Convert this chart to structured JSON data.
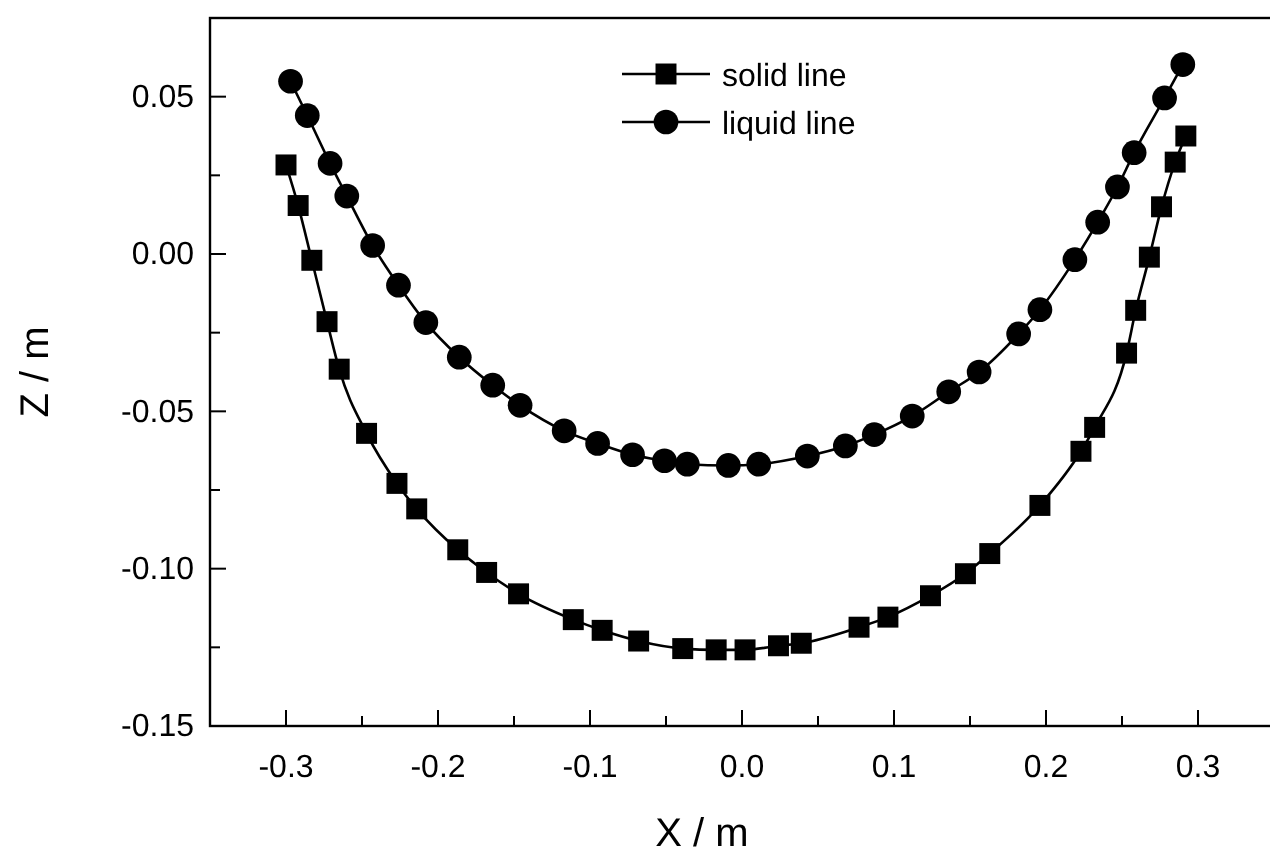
{
  "chart_data": {
    "type": "line",
    "xlabel": "X / m",
    "ylabel": "Z / m",
    "xlim": [
      -0.35,
      0.35
    ],
    "ylim": [
      -0.15,
      0.075
    ],
    "xticks": [
      {
        "value": -0.3,
        "label": "-0.3"
      },
      {
        "value": -0.25,
        "label": null
      },
      {
        "value": -0.2,
        "label": "-0.2"
      },
      {
        "value": -0.15,
        "label": null
      },
      {
        "value": -0.1,
        "label": "-0.1"
      },
      {
        "value": -0.05,
        "label": null
      },
      {
        "value": 0,
        "label": "0.0"
      },
      {
        "value": 0.05,
        "label": null
      },
      {
        "value": 0.1,
        "label": "0.1"
      },
      {
        "value": 0.15,
        "label": null
      },
      {
        "value": 0.2,
        "label": "0.2"
      },
      {
        "value": 0.25,
        "label": null
      },
      {
        "value": 0.3,
        "label": "0.3"
      }
    ],
    "yticks": [
      {
        "value": -0.15,
        "label": "-0.15"
      },
      {
        "value": -0.125,
        "label": null
      },
      {
        "value": -0.1,
        "label": "-0.10"
      },
      {
        "value": -0.075,
        "label": null
      },
      {
        "value": -0.05,
        "label": "-0.05"
      },
      {
        "value": -0.025,
        "label": null
      },
      {
        "value": 0,
        "label": "0.00"
      },
      {
        "value": 0.025,
        "label": null
      },
      {
        "value": 0.05,
        "label": "0.05"
      }
    ],
    "legend": "top",
    "line_style": "solid",
    "series": [
      {
        "name": "solid line",
        "color": "#000000",
        "marker": "square",
        "x": [
          -0.3,
          -0.292,
          -0.283,
          -0.273,
          -0.265,
          -0.247,
          -0.227,
          -0.214,
          -0.187,
          -0.168,
          -0.147,
          -0.111,
          -0.092,
          -0.068,
          -0.039,
          -0.017,
          0.002,
          0.024,
          0.039,
          0.077,
          0.096,
          0.124,
          0.147,
          0.163,
          0.196,
          0.223,
          0.232,
          0.253,
          0.259,
          0.268,
          0.276,
          0.285,
          0.292
        ],
        "values": [
          0.0283,
          0.0154,
          -0.002,
          -0.0215,
          -0.0366,
          -0.057,
          -0.0729,
          -0.081,
          -0.094,
          -0.1012,
          -0.108,
          -0.1162,
          -0.1196,
          -0.123,
          -0.1254,
          -0.1258,
          -0.1258,
          -0.1245,
          -0.1237,
          -0.1186,
          -0.1154,
          -0.1086,
          -0.1016,
          -0.0952,
          -0.0799,
          -0.0627,
          -0.0551,
          -0.0315,
          -0.0179,
          -0.001,
          0.015,
          0.0292,
          0.0375
        ]
      },
      {
        "name": "liquid line",
        "color": "#000000",
        "marker": "circle",
        "x": [
          -0.297,
          -0.286,
          -0.271,
          -0.26,
          -0.243,
          -0.226,
          -0.208,
          -0.186,
          -0.164,
          -0.146,
          -0.117,
          -0.095,
          -0.072,
          -0.051,
          -0.036,
          -0.009,
          0.011,
          0.043,
          0.068,
          0.087,
          0.112,
          0.136,
          0.156,
          0.182,
          0.196,
          0.219,
          0.234,
          0.247,
          0.258,
          0.278,
          0.29
        ],
        "values": [
          0.0549,
          0.044,
          0.0288,
          0.0184,
          0.0027,
          -0.0099,
          -0.0218,
          -0.0328,
          -0.0417,
          -0.0481,
          -0.0562,
          -0.0602,
          -0.0638,
          -0.0657,
          -0.0668,
          -0.0672,
          -0.0668,
          -0.0642,
          -0.061,
          -0.0574,
          -0.0515,
          -0.0438,
          -0.0375,
          -0.0254,
          -0.0177,
          -0.0018,
          0.0101,
          0.0213,
          0.0322,
          0.0496,
          0.0602
        ]
      }
    ]
  }
}
